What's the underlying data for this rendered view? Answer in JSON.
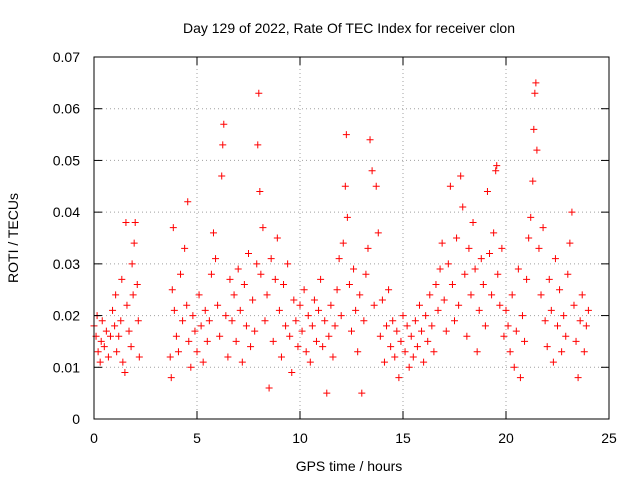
{
  "chart_data": {
    "type": "scatter",
    "title": "Day 129 of 2022, Rate Of TEC Index for receiver clon",
    "xlabel": "GPS time / hours",
    "ylabel": "ROTI / TECUs",
    "xlim": [
      0,
      25
    ],
    "ylim": [
      0,
      0.07
    ],
    "x_ticks": [
      0,
      5,
      10,
      15,
      20,
      25
    ],
    "x_tick_labels": [
      "0",
      "5",
      "10",
      "15",
      "20",
      "25"
    ],
    "y_ticks": [
      0,
      0.01,
      0.02,
      0.03,
      0.04,
      0.05,
      0.06,
      0.07
    ],
    "y_tick_labels": [
      "0",
      "0.01",
      "0.02",
      "0.03",
      "0.04",
      "0.05",
      "0.06",
      "0.07"
    ],
    "grid": true,
    "marker": "+",
    "marker_color": "#ff0000",
    "series": [
      {
        "values": [
          [
            0.0,
            0.018
          ],
          [
            0.1,
            0.016
          ],
          [
            0.15,
            0.02
          ],
          [
            0.2,
            0.013
          ],
          [
            0.3,
            0.011
          ],
          [
            0.35,
            0.015
          ],
          [
            0.4,
            0.019
          ],
          [
            0.5,
            0.014
          ],
          [
            0.6,
            0.017
          ],
          [
            0.7,
            0.012
          ],
          [
            0.8,
            0.016
          ],
          [
            0.9,
            0.021
          ],
          [
            1.0,
            0.018
          ],
          [
            1.05,
            0.024
          ],
          [
            1.1,
            0.013
          ],
          [
            1.2,
            0.016
          ],
          [
            1.3,
            0.019
          ],
          [
            1.35,
            0.027
          ],
          [
            1.4,
            0.011
          ],
          [
            1.5,
            0.009
          ],
          [
            1.55,
            0.038
          ],
          [
            1.6,
            0.022
          ],
          [
            1.7,
            0.017
          ],
          [
            1.8,
            0.014
          ],
          [
            1.85,
            0.03
          ],
          [
            1.9,
            0.024
          ],
          [
            1.95,
            0.034
          ],
          [
            2.0,
            0.038
          ],
          [
            2.1,
            0.026
          ],
          [
            2.15,
            0.019
          ],
          [
            2.2,
            0.012
          ],
          [
            3.7,
            0.012
          ],
          [
            3.75,
            0.008
          ],
          [
            3.8,
            0.025
          ],
          [
            3.85,
            0.037
          ],
          [
            3.9,
            0.021
          ],
          [
            4.0,
            0.016
          ],
          [
            4.1,
            0.013
          ],
          [
            4.2,
            0.028
          ],
          [
            4.3,
            0.019
          ],
          [
            4.4,
            0.033
          ],
          [
            4.5,
            0.022
          ],
          [
            4.55,
            0.042
          ],
          [
            4.6,
            0.015
          ],
          [
            4.7,
            0.01
          ],
          [
            4.8,
            0.02
          ],
          [
            4.9,
            0.017
          ],
          [
            5.0,
            0.013
          ],
          [
            5.1,
            0.024
          ],
          [
            5.2,
            0.018
          ],
          [
            5.3,
            0.011
          ],
          [
            5.4,
            0.021
          ],
          [
            5.5,
            0.015
          ],
          [
            5.6,
            0.019
          ],
          [
            5.7,
            0.028
          ],
          [
            5.8,
            0.036
          ],
          [
            5.9,
            0.031
          ],
          [
            6.0,
            0.022
          ],
          [
            6.1,
            0.016
          ],
          [
            6.2,
            0.047
          ],
          [
            6.25,
            0.053
          ],
          [
            6.3,
            0.057
          ],
          [
            6.4,
            0.02
          ],
          [
            6.5,
            0.012
          ],
          [
            6.6,
            0.027
          ],
          [
            6.7,
            0.019
          ],
          [
            6.8,
            0.024
          ],
          [
            6.9,
            0.015
          ],
          [
            7.0,
            0.029
          ],
          [
            7.1,
            0.021
          ],
          [
            7.2,
            0.011
          ],
          [
            7.3,
            0.026
          ],
          [
            7.4,
            0.018
          ],
          [
            7.5,
            0.032
          ],
          [
            7.6,
            0.014
          ],
          [
            7.7,
            0.023
          ],
          [
            7.8,
            0.017
          ],
          [
            7.9,
            0.03
          ],
          [
            7.95,
            0.053
          ],
          [
            8.0,
            0.063
          ],
          [
            8.05,
            0.044
          ],
          [
            8.1,
            0.028
          ],
          [
            8.2,
            0.037
          ],
          [
            8.3,
            0.019
          ],
          [
            8.4,
            0.024
          ],
          [
            8.5,
            0.006
          ],
          [
            8.6,
            0.031
          ],
          [
            8.7,
            0.015
          ],
          [
            8.8,
            0.027
          ],
          [
            8.9,
            0.035
          ],
          [
            9.0,
            0.021
          ],
          [
            9.1,
            0.012
          ],
          [
            9.2,
            0.026
          ],
          [
            9.3,
            0.018
          ],
          [
            9.4,
            0.03
          ],
          [
            9.5,
            0.016
          ],
          [
            9.6,
            0.009
          ],
          [
            9.7,
            0.023
          ],
          [
            9.8,
            0.019
          ],
          [
            9.9,
            0.014
          ],
          [
            10.0,
            0.022
          ],
          [
            10.1,
            0.017
          ],
          [
            10.2,
            0.025
          ],
          [
            10.3,
            0.013
          ],
          [
            10.4,
            0.02
          ],
          [
            10.5,
            0.011
          ],
          [
            10.6,
            0.018
          ],
          [
            10.7,
            0.023
          ],
          [
            10.8,
            0.015
          ],
          [
            10.9,
            0.021
          ],
          [
            11.0,
            0.027
          ],
          [
            11.1,
            0.014
          ],
          [
            11.2,
            0.019
          ],
          [
            11.3,
            0.005
          ],
          [
            11.4,
            0.016
          ],
          [
            11.5,
            0.022
          ],
          [
            11.6,
            0.012
          ],
          [
            11.7,
            0.018
          ],
          [
            11.8,
            0.025
          ],
          [
            11.9,
            0.031
          ],
          [
            12.0,
            0.02
          ],
          [
            12.1,
            0.034
          ],
          [
            12.2,
            0.045
          ],
          [
            12.25,
            0.055
          ],
          [
            12.3,
            0.039
          ],
          [
            12.4,
            0.026
          ],
          [
            12.5,
            0.017
          ],
          [
            12.6,
            0.029
          ],
          [
            12.7,
            0.021
          ],
          [
            12.8,
            0.013
          ],
          [
            12.9,
            0.024
          ],
          [
            13.0,
            0.005
          ],
          [
            13.1,
            0.019
          ],
          [
            13.2,
            0.028
          ],
          [
            13.3,
            0.033
          ],
          [
            13.4,
            0.054
          ],
          [
            13.5,
            0.048
          ],
          [
            13.6,
            0.022
          ],
          [
            13.7,
            0.045
          ],
          [
            13.8,
            0.036
          ],
          [
            13.9,
            0.016
          ],
          [
            14.0,
            0.023
          ],
          [
            14.1,
            0.011
          ],
          [
            14.2,
            0.018
          ],
          [
            14.3,
            0.025
          ],
          [
            14.4,
            0.014
          ],
          [
            14.5,
            0.019
          ],
          [
            14.6,
            0.012
          ],
          [
            14.7,
            0.017
          ],
          [
            14.8,
            0.008
          ],
          [
            14.9,
            0.015
          ],
          [
            15.0,
            0.02
          ],
          [
            15.1,
            0.013
          ],
          [
            15.2,
            0.018
          ],
          [
            15.3,
            0.01
          ],
          [
            15.4,
            0.016
          ],
          [
            15.5,
            0.012
          ],
          [
            15.6,
            0.019
          ],
          [
            15.7,
            0.014
          ],
          [
            15.8,
            0.022
          ],
          [
            15.9,
            0.017
          ],
          [
            16.0,
            0.011
          ],
          [
            16.1,
            0.02
          ],
          [
            16.2,
            0.015
          ],
          [
            16.3,
            0.024
          ],
          [
            16.4,
            0.018
          ],
          [
            16.5,
            0.013
          ],
          [
            16.6,
            0.026
          ],
          [
            16.7,
            0.021
          ],
          [
            16.8,
            0.029
          ],
          [
            16.9,
            0.034
          ],
          [
            17.0,
            0.023
          ],
          [
            17.1,
            0.017
          ],
          [
            17.2,
            0.03
          ],
          [
            17.3,
            0.045
          ],
          [
            17.4,
            0.026
          ],
          [
            17.5,
            0.019
          ],
          [
            17.6,
            0.035
          ],
          [
            17.7,
            0.022
          ],
          [
            17.8,
            0.047
          ],
          [
            17.9,
            0.041
          ],
          [
            18.0,
            0.028
          ],
          [
            18.1,
            0.016
          ],
          [
            18.2,
            0.033
          ],
          [
            18.3,
            0.024
          ],
          [
            18.4,
            0.038
          ],
          [
            18.5,
            0.029
          ],
          [
            18.6,
            0.013
          ],
          [
            18.7,
            0.021
          ],
          [
            18.8,
            0.031
          ],
          [
            18.9,
            0.026
          ],
          [
            19.0,
            0.018
          ],
          [
            19.1,
            0.044
          ],
          [
            19.2,
            0.032
          ],
          [
            19.3,
            0.024
          ],
          [
            19.4,
            0.036
          ],
          [
            19.5,
            0.048
          ],
          [
            19.55,
            0.049
          ],
          [
            19.6,
            0.028
          ],
          [
            19.7,
            0.022
          ],
          [
            19.8,
            0.033
          ],
          [
            19.9,
            0.016
          ],
          [
            20.0,
            0.021
          ],
          [
            20.1,
            0.018
          ],
          [
            20.2,
            0.013
          ],
          [
            20.3,
            0.024
          ],
          [
            20.4,
            0.01
          ],
          [
            20.5,
            0.017
          ],
          [
            20.6,
            0.029
          ],
          [
            20.7,
            0.008
          ],
          [
            20.8,
            0.02
          ],
          [
            20.9,
            0.015
          ],
          [
            21.0,
            0.027
          ],
          [
            21.1,
            0.035
          ],
          [
            21.2,
            0.039
          ],
          [
            21.3,
            0.046
          ],
          [
            21.35,
            0.056
          ],
          [
            21.4,
            0.063
          ],
          [
            21.45,
            0.065
          ],
          [
            21.5,
            0.052
          ],
          [
            21.6,
            0.033
          ],
          [
            21.7,
            0.024
          ],
          [
            21.8,
            0.037
          ],
          [
            21.9,
            0.019
          ],
          [
            22.0,
            0.014
          ],
          [
            22.1,
            0.027
          ],
          [
            22.2,
            0.021
          ],
          [
            22.3,
            0.011
          ],
          [
            22.4,
            0.031
          ],
          [
            22.5,
            0.018
          ],
          [
            22.6,
            0.025
          ],
          [
            22.7,
            0.013
          ],
          [
            22.8,
            0.02
          ],
          [
            22.9,
            0.016
          ],
          [
            23.0,
            0.028
          ],
          [
            23.1,
            0.034
          ],
          [
            23.2,
            0.04
          ],
          [
            23.3,
            0.022
          ],
          [
            23.4,
            0.015
          ],
          [
            23.5,
            0.008
          ],
          [
            23.6,
            0.019
          ],
          [
            23.7,
            0.024
          ],
          [
            23.8,
            0.013
          ],
          [
            23.9,
            0.018
          ],
          [
            24.0,
            0.021
          ]
        ]
      }
    ]
  }
}
